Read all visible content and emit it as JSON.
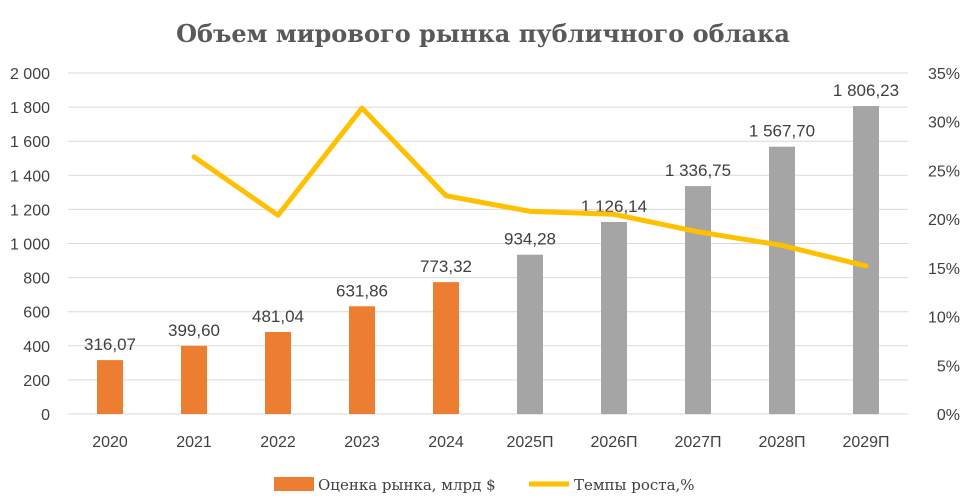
{
  "chart_data": {
    "type": "bar",
    "title": "Объем мирового рынка публичного облака",
    "categories": [
      "2020",
      "2021",
      "2022",
      "2023",
      "2024",
      "2025П",
      "2026П",
      "2027П",
      "2028П",
      "2029П"
    ],
    "series": [
      {
        "name": "Оценка рынка, млрд $",
        "type": "bar",
        "axis": "left",
        "values": [
          316.07,
          399.6,
          481.04,
          631.86,
          773.32,
          934.28,
          1126.14,
          1336.75,
          1567.7,
          1806.23
        ],
        "data_labels": [
          "316,07",
          "399,60",
          "481,04",
          "631,86",
          "773,32",
          "934,28",
          "1 126,14",
          "1 336,75",
          "1 567,70",
          "1 806,23"
        ],
        "colors": [
          "#ED7D31",
          "#ED7D31",
          "#ED7D31",
          "#ED7D31",
          "#ED7D31",
          "#A5A5A5",
          "#A5A5A5",
          "#A5A5A5",
          "#A5A5A5",
          "#A5A5A5"
        ]
      },
      {
        "name": "Темпы роста,%",
        "type": "line",
        "axis": "right",
        "color": "#FFC000",
        "values": [
          null,
          26.4,
          20.4,
          31.4,
          22.4,
          20.8,
          20.5,
          18.7,
          17.3,
          15.2
        ]
      }
    ],
    "y_left": {
      "lim": [
        0,
        2000
      ],
      "ticks": [
        0,
        200,
        400,
        600,
        800,
        1000,
        1200,
        1400,
        1600,
        1800,
        2000
      ],
      "tick_labels": [
        "0",
        "200",
        "400",
        "600",
        "800",
        "1 000",
        "1 200",
        "1 400",
        "1 600",
        "1 800",
        "2 000"
      ]
    },
    "y_right": {
      "lim": [
        0,
        35
      ],
      "ticks": [
        0,
        5,
        10,
        15,
        20,
        25,
        30,
        35
      ],
      "tick_labels": [
        "0%",
        "5%",
        "10%",
        "15%",
        "20%",
        "25%",
        "30%",
        "35%"
      ]
    },
    "grid": true,
    "legend_position": "bottom",
    "grid_color": "#D9D9D9"
  }
}
